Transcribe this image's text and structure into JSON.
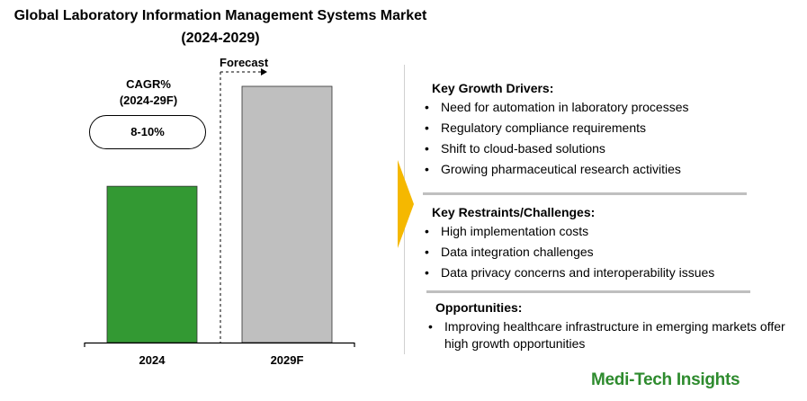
{
  "chart_data": {
    "type": "bar",
    "title": "Global Laboratory Information Management Systems Market",
    "subtitle": "(2024-2029)",
    "categories": [
      "2024",
      "2029F"
    ],
    "values": [
      0.61,
      1.0
    ],
    "colors": [
      "#339933",
      "#bfbfbf"
    ],
    "xlabel": "",
    "ylabel": "",
    "forecast_label": "Forecast",
    "cagr_label_line1": "CAGR%",
    "cagr_label_line2": "(2024-29F)",
    "cagr_value": "8-10%"
  },
  "panel": {
    "drivers": {
      "title": "Key Growth Drivers:",
      "items": [
        "Need for automation in laboratory processes",
        "Regulatory compliance requirements",
        "Shift to cloud-based solutions",
        "Growing pharmaceutical research activities"
      ]
    },
    "restraints": {
      "title": "Key Restraints/Challenges:",
      "items": [
        "High implementation costs",
        "Data integration challenges",
        "Data privacy concerns and interoperability issues"
      ]
    },
    "opportunities": {
      "title": "Opportunities:",
      "items": [
        "Improving healthcare infrastructure in emerging markets offer high growth opportunities"
      ]
    },
    "arrow_color": "#f5b800",
    "brand": "Medi-Tech Insights",
    "brand_color": "#2e8b2e"
  }
}
